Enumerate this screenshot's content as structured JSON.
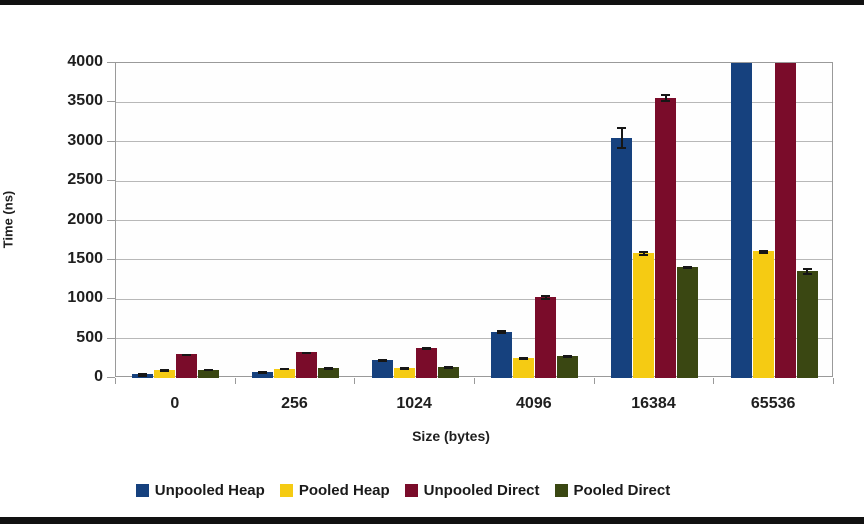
{
  "chart_data": {
    "type": "bar",
    "title": "",
    "xlabel": "Size (bytes)",
    "ylabel": "Time (ns)",
    "categories": [
      "0",
      "256",
      "1024",
      "4096",
      "16384",
      "65536"
    ],
    "series": [
      {
        "name": "Unpooled Heap",
        "color": "#16417e",
        "values": [
          45,
          80,
          230,
          590,
          3050,
          4000
        ],
        "errors": [
          15,
          12,
          15,
          20,
          135,
          0
        ],
        "exceeds_axis": [
          false,
          false,
          false,
          false,
          false,
          true
        ]
      },
      {
        "name": "Pooled Heap",
        "color": "#f5cb13",
        "values": [
          105,
          120,
          125,
          250,
          1585,
          1610
        ],
        "errors": [
          12,
          12,
          10,
          12,
          25,
          20
        ],
        "exceeds_axis": [
          false,
          false,
          false,
          false,
          false,
          false
        ]
      },
      {
        "name": "Unpooled Direct",
        "color": "#7a0c2a",
        "values": [
          300,
          325,
          385,
          1030,
          3560,
          4000
        ],
        "errors": [
          10,
          10,
          15,
          30,
          45,
          0
        ],
        "exceeds_axis": [
          false,
          false,
          false,
          false,
          false,
          true
        ]
      },
      {
        "name": "Pooled Direct",
        "color": "#3a4712",
        "values": [
          105,
          130,
          140,
          285,
          1410,
          1360
        ],
        "errors": [
          8,
          10,
          10,
          12,
          18,
          35
        ],
        "exceeds_axis": [
          false,
          false,
          false,
          false,
          false,
          false
        ]
      }
    ],
    "ylim": [
      0,
      4000
    ],
    "yticks": [
      0,
      500,
      1000,
      1500,
      2000,
      2500,
      3000,
      3500,
      4000
    ],
    "grid": true,
    "legend_position": "bottom",
    "error_bars": true
  }
}
